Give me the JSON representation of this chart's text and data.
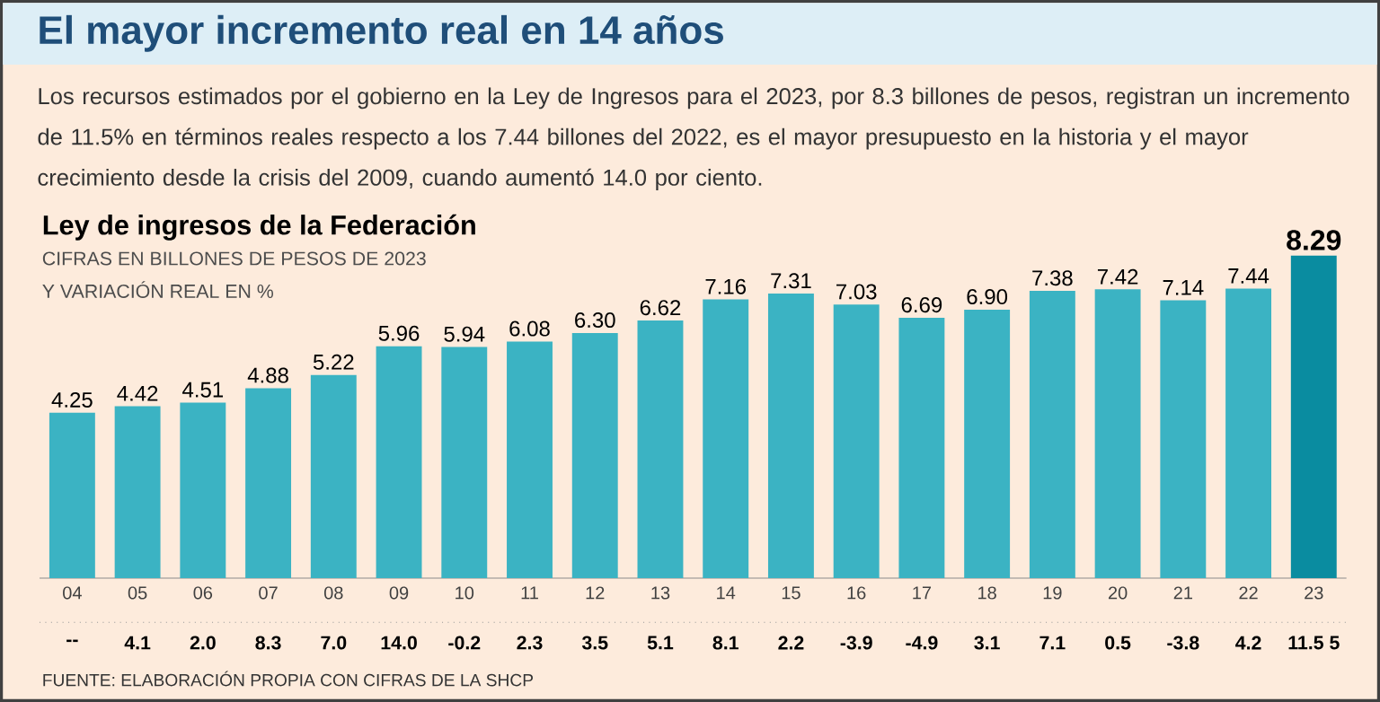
{
  "chart_data": {
    "type": "bar",
    "title": "El mayor incremento real en 14 años",
    "subtitle": "Los recursos estimados por el gobierno en la Ley de Ingresos para el 2023, por 8.3 billones de pesos, registran un incremento de 11.5% en términos reales respecto a los 7.44 billones del 2022, es el mayor presupuesto en la historia y el mayor crecimiento desde la crisis del 2009, cuando aumentó 14.0 por ciento.",
    "categories": [
      "04",
      "05",
      "06",
      "07",
      "08",
      "09",
      "10",
      "11",
      "12",
      "13",
      "14",
      "15",
      "16",
      "17",
      "18",
      "19",
      "20",
      "21",
      "22",
      "23"
    ],
    "values": [
      4.25,
      4.42,
      4.51,
      4.88,
      5.22,
      5.96,
      5.94,
      6.08,
      6.3,
      6.62,
      7.16,
      7.31,
      7.03,
      6.69,
      6.9,
      7.38,
      7.42,
      7.14,
      7.44,
      8.29
    ],
    "value_labels": [
      "4.25",
      "4.42",
      "4.51",
      "4.88",
      "5.22",
      "5.96",
      "5.94",
      "6.08",
      "6.30",
      "6.62",
      "7.16",
      "7.31",
      "7.03",
      "6.69",
      "6.90",
      "7.38",
      "7.42",
      "7.14",
      "7.44",
      "8.29"
    ],
    "colors": [
      "#3bb3c3",
      "#3bb3c3",
      "#3bb3c3",
      "#3bb3c3",
      "#3bb3c3",
      "#3bb3c3",
      "#3bb3c3",
      "#3bb3c3",
      "#3bb3c3",
      "#3bb3c3",
      "#3bb3c3",
      "#3bb3c3",
      "#3bb3c3",
      "#3bb3c3",
      "#3bb3c3",
      "#3bb3c3",
      "#3bb3c3",
      "#3bb3c3",
      "#3bb3c3",
      "#0a8ca0"
    ],
    "annotations": [
      "Ley de ingresos de la Federación",
      "CIFRAS EN BILLONES DE PESOS DE 2023",
      "Y VARIACIÓN REAL EN %",
      "FUENTE: ELABORACIÓN PROPIA CON CIFRAS DE LA SHCP",
      "--",
      "4.1",
      "2.0",
      "8.3",
      "7.0",
      "14.0",
      "-0.2",
      "2.3",
      "3.5",
      "5.1",
      "8.1",
      "2.2",
      "-3.9",
      "-4.9",
      "3.1",
      "7.1",
      "0.5",
      "-3.8",
      "4.2",
      "11.5 5"
    ]
  }
}
